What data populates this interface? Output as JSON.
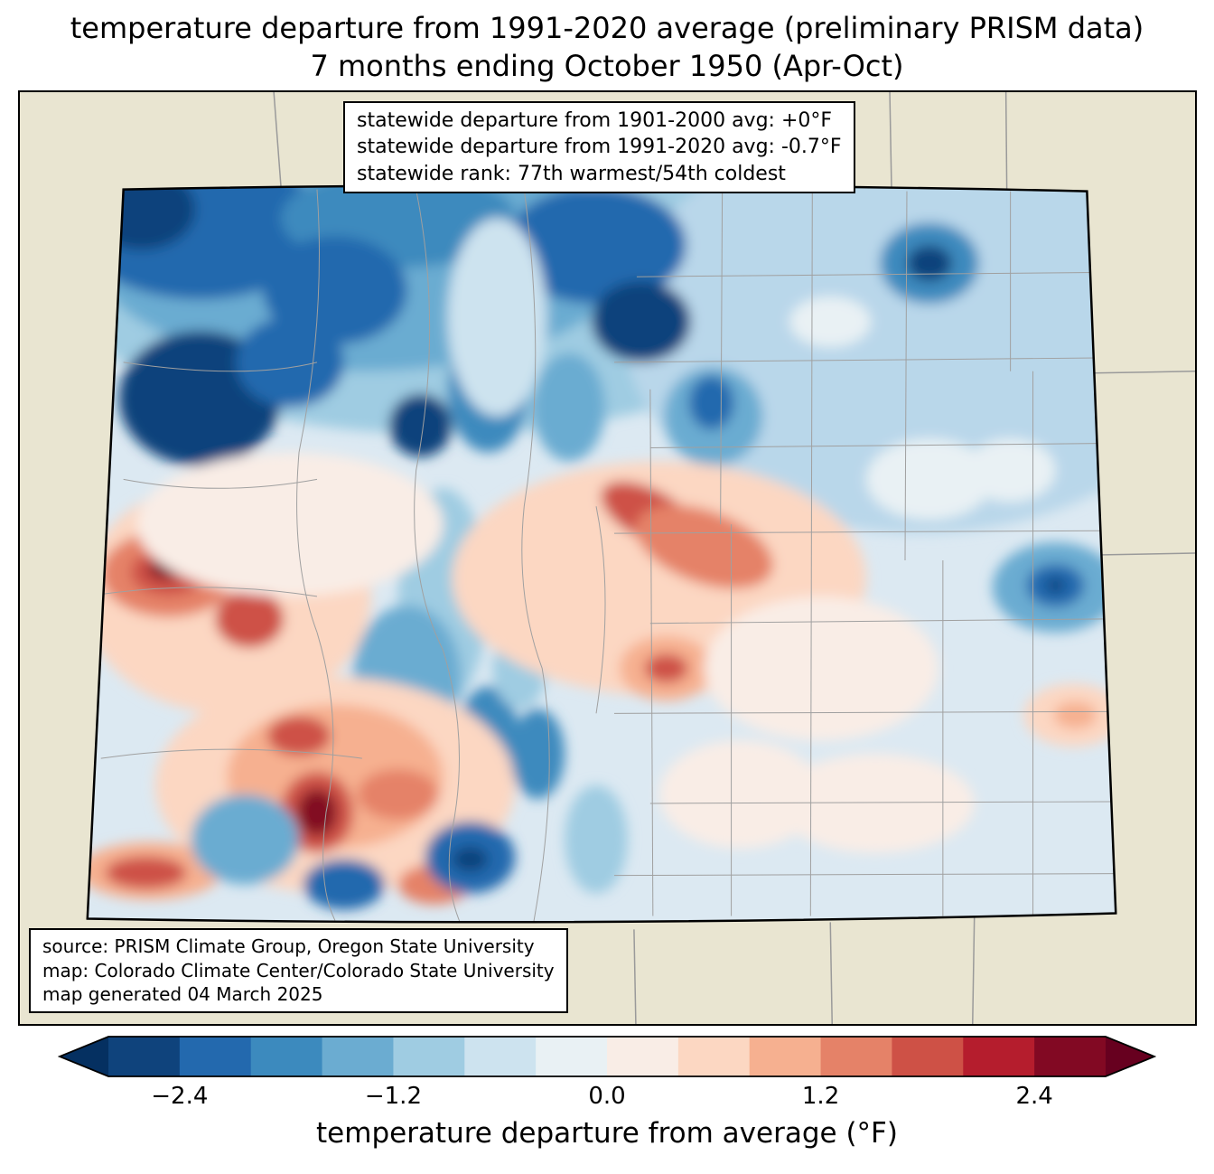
{
  "title": {
    "line1": "temperature departure from 1991-2020 average (preliminary PRISM data)",
    "line2": "7 months ending October 1950 (Apr-Oct)"
  },
  "stats_box": {
    "lines": [
      "statewide departure from 1901-2000 avg: +0°F",
      "statewide departure from 1991-2020 avg: -0.7°F",
      "statewide rank: 77th warmest/54th coldest"
    ]
  },
  "source_box": {
    "lines": [
      "source: PRISM Climate Group, Oregon State University",
      "map: Colorado Climate Center/Colorado State University",
      "map generated 04 March 2025"
    ]
  },
  "colorbar": {
    "label": "temperature departure from average (°F)",
    "range": [
      -2.8,
      2.8
    ],
    "step": 0.4,
    "ticks": [
      {
        "label": "−2.4",
        "value": -2.4
      },
      {
        "label": "−1.2",
        "value": -1.2
      },
      {
        "label": "0.0",
        "value": 0.0
      },
      {
        "label": "1.2",
        "value": 1.2
      },
      {
        "label": "2.4",
        "value": 2.4
      }
    ],
    "colors": [
      "#0f437c",
      "#2369ae",
      "#3c8abe",
      "#6bacd1",
      "#9fcce2",
      "#cde3ef",
      "#e9f1f4",
      "#f9ede6",
      "#fcd7c2",
      "#f6b090",
      "#e58268",
      "#ce5146",
      "#b51d2d",
      "#820923"
    ],
    "arrow_left_color": "#053061",
    "arrow_right_color": "#67001f"
  },
  "map": {
    "region": "Colorado",
    "type": "filled-contour temperature anomaly map with county boundaries",
    "background_color": "#e9e5d1",
    "base_fill_color": "#dce9f2",
    "county_line_color": "#a0a0a0",
    "state_border_color": "#000000"
  }
}
